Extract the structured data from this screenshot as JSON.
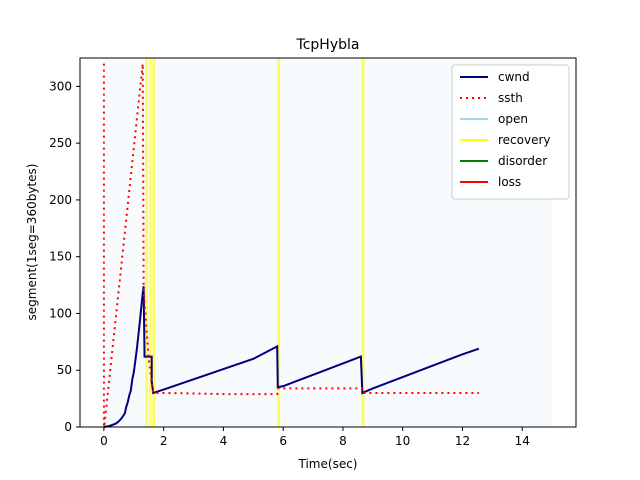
{
  "chart_data": {
    "type": "line",
    "title": "TcpHybla",
    "xlabel": "Time(sec)",
    "ylabel": "segment(1seg=360bytes)",
    "xlim": [
      -0.8,
      15.8
    ],
    "ylim": [
      0,
      325
    ],
    "xticks": [
      0,
      2,
      4,
      6,
      8,
      10,
      12,
      14
    ],
    "yticks": [
      0,
      50,
      100,
      150,
      200,
      250,
      300
    ],
    "legend": "top-right",
    "grid": false,
    "series": [
      {
        "name": "cwnd",
        "color": "#00007f",
        "style": "solid",
        "points": [
          [
            0,
            0
          ],
          [
            0.2,
            1
          ],
          [
            0.4,
            3
          ],
          [
            0.5,
            5
          ],
          [
            0.6,
            8
          ],
          [
            0.7,
            12
          ],
          [
            0.75,
            18
          ],
          [
            0.8,
            22
          ],
          [
            0.85,
            28
          ],
          [
            0.9,
            32
          ],
          [
            0.95,
            42
          ],
          [
            1.0,
            48
          ],
          [
            1.05,
            58
          ],
          [
            1.1,
            68
          ],
          [
            1.15,
            80
          ],
          [
            1.2,
            92
          ],
          [
            1.25,
            105
          ],
          [
            1.3,
            118
          ],
          [
            1.33,
            124
          ],
          [
            1.36,
            62
          ],
          [
            1.6,
            62
          ],
          [
            1.6,
            40
          ],
          [
            1.65,
            30
          ],
          [
            2.0,
            33
          ],
          [
            3.0,
            42
          ],
          [
            4.0,
            51
          ],
          [
            5.0,
            60
          ],
          [
            5.8,
            71
          ],
          [
            5.82,
            35
          ],
          [
            6.0,
            36
          ],
          [
            7.0,
            46
          ],
          [
            8.0,
            56
          ],
          [
            8.6,
            62
          ],
          [
            8.65,
            30
          ],
          [
            9.0,
            34
          ],
          [
            10.0,
            44
          ],
          [
            11.0,
            54
          ],
          [
            12.0,
            64
          ],
          [
            12.55,
            69
          ]
        ]
      },
      {
        "name": "ssth",
        "color": "#ff0000",
        "style": "dotted",
        "points": [
          [
            0,
            320
          ],
          [
            0,
            0
          ],
          [
            0.01,
            0
          ],
          [
            1.3,
            320
          ],
          [
            1.33,
            120
          ],
          [
            1.5,
            60
          ],
          [
            1.65,
            30
          ],
          [
            2.0,
            30
          ],
          [
            4.0,
            29
          ],
          [
            5.8,
            29
          ],
          [
            5.82,
            34
          ],
          [
            8.0,
            34
          ],
          [
            8.65,
            34
          ],
          [
            8.67,
            30
          ],
          [
            12.55,
            30
          ]
        ]
      },
      {
        "name": "open",
        "color": "#a6d4ee",
        "style": "solid",
        "spans": [
          [
            0,
            15
          ]
        ]
      },
      {
        "name": "recovery",
        "color": "#ffff00",
        "style": "solid",
        "spans": [
          [
            1.38,
            1.48
          ],
          [
            1.52,
            1.58
          ],
          [
            1.62,
            1.72
          ],
          [
            5.8,
            5.9
          ],
          [
            8.62,
            8.72
          ]
        ]
      },
      {
        "name": "disorder",
        "color": "#007f00",
        "style": "solid",
        "spans": []
      },
      {
        "name": "loss",
        "color": "#ff0000",
        "style": "solid",
        "spans": []
      }
    ]
  }
}
